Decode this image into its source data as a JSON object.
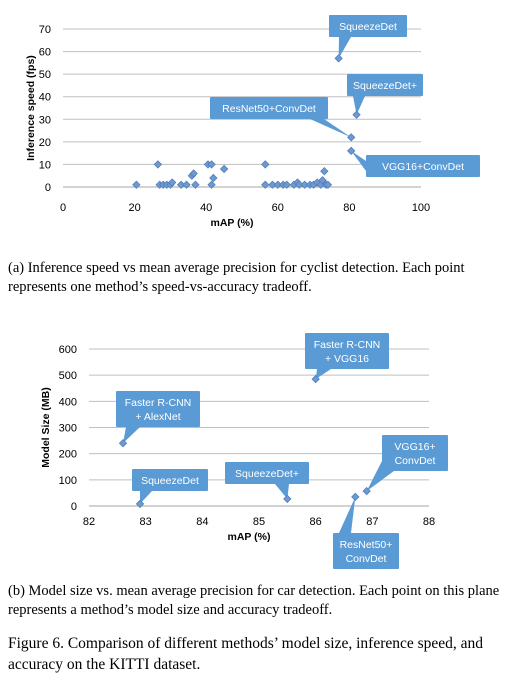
{
  "chart_data": [
    {
      "type": "scatter",
      "xlabel": "mAP (%)",
      "ylabel": "Inference speed (fps)",
      "xlim": [
        0,
        100
      ],
      "ylim": [
        0,
        70
      ],
      "xticks": [
        "0",
        "20",
        "40",
        "60",
        "80",
        "100"
      ],
      "yticks": [
        "0",
        "10",
        "20",
        "30",
        "40",
        "50",
        "60",
        "70"
      ],
      "grid": "horizontal",
      "marker_color": "#6f99cf",
      "callout_color": "#5b9bd5",
      "points": [
        {
          "x": 20.5,
          "y": 1
        },
        {
          "x": 26.5,
          "y": 10
        },
        {
          "x": 27,
          "y": 1
        },
        {
          "x": 28,
          "y": 1
        },
        {
          "x": 29,
          "y": 1
        },
        {
          "x": 30,
          "y": 1
        },
        {
          "x": 30.5,
          "y": 2
        },
        {
          "x": 33,
          "y": 1
        },
        {
          "x": 34.5,
          "y": 1
        },
        {
          "x": 36,
          "y": 5
        },
        {
          "x": 36.5,
          "y": 6
        },
        {
          "x": 37,
          "y": 1
        },
        {
          "x": 40.5,
          "y": 10
        },
        {
          "x": 41.5,
          "y": 10
        },
        {
          "x": 41.5,
          "y": 1
        },
        {
          "x": 42,
          "y": 4
        },
        {
          "x": 45,
          "y": 8
        },
        {
          "x": 56.5,
          "y": 10
        },
        {
          "x": 56.5,
          "y": 1
        },
        {
          "x": 58.5,
          "y": 1
        },
        {
          "x": 60,
          "y": 1
        },
        {
          "x": 61.5,
          "y": 1
        },
        {
          "x": 62.5,
          "y": 1
        },
        {
          "x": 64.5,
          "y": 1
        },
        {
          "x": 65.5,
          "y": 2
        },
        {
          "x": 66,
          "y": 1
        },
        {
          "x": 67.5,
          "y": 1
        },
        {
          "x": 69,
          "y": 1
        },
        {
          "x": 70,
          "y": 1
        },
        {
          "x": 71,
          "y": 2
        },
        {
          "x": 72,
          "y": 1
        },
        {
          "x": 72.5,
          "y": 3
        },
        {
          "x": 73,
          "y": 7
        },
        {
          "x": 73.5,
          "y": 1
        },
        {
          "x": 74,
          "y": 1
        }
      ],
      "labeled_points": [
        {
          "label": "SqueezeDet",
          "x": 77,
          "y": 57
        },
        {
          "label": "SqueezeDet+",
          "x": 82,
          "y": 32
        },
        {
          "label": "ResNet50+ConvDet",
          "x": 80.5,
          "y": 22
        },
        {
          "label": "VGG16+ConvDet",
          "x": 80.5,
          "y": 16
        }
      ]
    },
    {
      "type": "scatter",
      "xlabel": "mAP (%)",
      "ylabel": "Model Size (MB)",
      "xlim": [
        82,
        88
      ],
      "ylim": [
        0,
        600
      ],
      "xticks": [
        "82",
        "83",
        "84",
        "85",
        "86",
        "87",
        "88"
      ],
      "yticks": [
        "0",
        "100",
        "200",
        "300",
        "400",
        "500",
        "600"
      ],
      "grid": "horizontal",
      "marker_color": "#6f99cf",
      "callout_color": "#5b9bd5",
      "labeled_points": [
        {
          "label": "Faster R-CNN + AlexNet",
          "label_lines": [
            "Faster R-CNN",
            "+ AlexNet"
          ],
          "x": 82.6,
          "y": 240
        },
        {
          "label": "SqueezeDet",
          "label_lines": [
            "SqueezeDet"
          ],
          "x": 82.9,
          "y": 8
        },
        {
          "label": "SqueezeDet+",
          "label_lines": [
            "SqueezeDet+"
          ],
          "x": 85.5,
          "y": 27
        },
        {
          "label": "Faster R-CNN + VGG16",
          "label_lines": [
            "Faster R-CNN",
            "+ VGG16"
          ],
          "x": 86,
          "y": 485
        },
        {
          "label": "VGG16+ ConvDet",
          "label_lines": [
            "VGG16+",
            "ConvDet"
          ],
          "x": 86.9,
          "y": 57
        },
        {
          "label": "ResNet50+ ConvDet",
          "label_lines": [
            "ResNet50+",
            "ConvDet"
          ],
          "x": 86.7,
          "y": 35
        }
      ]
    }
  ],
  "captions": {
    "a": "(a) Inference speed vs mean average precision for cyclist detection. Each point represents one method’s speed-vs-accuracy tradeoff.",
    "b": "(b) Model size vs. mean average precision for car detection. Each point on this plane represents a method’s model size and accuracy tradeoff.",
    "figure": "Figure 6. Comparison of different methods’ model size, inference speed, and accuracy on the KITTI dataset."
  }
}
